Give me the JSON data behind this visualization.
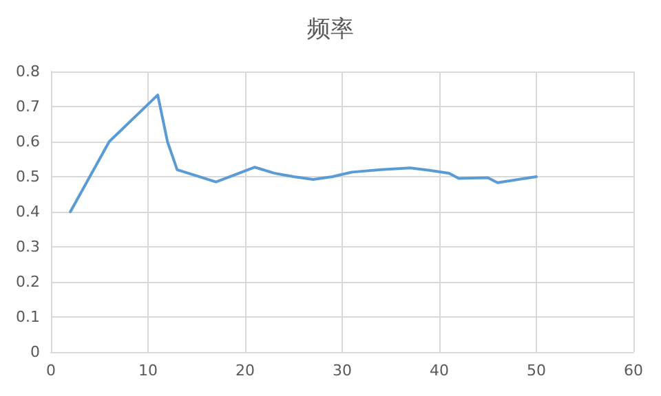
{
  "chart_data": {
    "type": "line",
    "title": "频率",
    "x": [
      2,
      6,
      11,
      12,
      13,
      17,
      21,
      23,
      25,
      27,
      29,
      31,
      34,
      37,
      39,
      41,
      42,
      45,
      46,
      50
    ],
    "series": [
      {
        "color": "#5b9bd5",
        "values": [
          0.4,
          0.6,
          0.733,
          0.6,
          0.52,
          0.485,
          0.527,
          0.51,
          0.5,
          0.492,
          0.5,
          0.513,
          0.52,
          0.525,
          0.518,
          0.51,
          0.495,
          0.497,
          0.483,
          0.5
        ]
      }
    ],
    "xlim": [
      0,
      60
    ],
    "xticks": [
      0,
      10,
      20,
      30,
      40,
      50,
      60
    ],
    "ylim": [
      0,
      0.8
    ],
    "yticks": [
      0,
      0.1,
      0.2,
      0.3,
      0.4,
      0.5,
      0.6,
      0.7,
      0.8
    ],
    "grid": true,
    "marker": "none",
    "line_style": "solid"
  }
}
